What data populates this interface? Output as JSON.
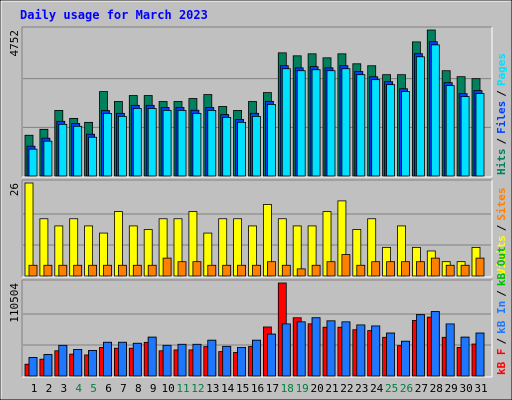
{
  "title": "Daily usage for March 2023",
  "weekend_indices": [
    3,
    4,
    10,
    11,
    17,
    18,
    24,
    25
  ],
  "weekend_label_color": "#008040",
  "label_separator": "/",
  "chart_data": [
    {
      "type": "bar",
      "ylim": [
        0,
        4752
      ],
      "yticks": [
        4752
      ],
      "grid": true,
      "series": [
        {
          "name": "Hits",
          "color": "#00805c",
          "values": [
            1326,
            1520,
            2134,
            1875,
            1746,
            2748,
            2425,
            2619,
            2619,
            2425,
            2425,
            2522,
            2651,
            2263,
            2134,
            2425,
            2716,
            4009,
            3912,
            3977,
            3847,
            3977,
            3653,
            3589,
            3298,
            3298,
            4365,
            4752,
            3427,
            3233,
            3168
          ]
        },
        {
          "name": "Files",
          "color": "#0040ff",
          "values": [
            970,
            1230,
            1780,
            1710,
            1360,
            2130,
            2040,
            2300,
            2300,
            2230,
            2230,
            2140,
            2230,
            2000,
            1840,
            2040,
            2430,
            3590,
            3520,
            3560,
            3520,
            3590,
            3400,
            3230,
            3070,
            2840,
            3980,
            4370,
            3040,
            2680,
            2780
          ]
        },
        {
          "name": "Pages",
          "color": "#00e0ff",
          "values": [
            873,
            1132,
            1681,
            1617,
            1261,
            2037,
            1940,
            2198,
            2198,
            2134,
            2134,
            2037,
            2134,
            1907,
            1746,
            1940,
            2328,
            3492,
            3427,
            3459,
            3427,
            3492,
            3298,
            3136,
            2974,
            2748,
            3880,
            4268,
            2942,
            2586,
            2683
          ]
        }
      ]
    },
    {
      "type": "bar",
      "ylim": [
        0,
        26
      ],
      "yticks": [
        26
      ],
      "grid": true,
      "series": [
        {
          "name": "Visits",
          "color": "#ffff00",
          "values": [
            26,
            16,
            14,
            16,
            14,
            12,
            18,
            14,
            13,
            16,
            16,
            18,
            12,
            16,
            16,
            14,
            20,
            16,
            14,
            14,
            18,
            21,
            13,
            16,
            8,
            14,
            8,
            7,
            4,
            4,
            8
          ]
        },
        {
          "name": "Sites",
          "color": "#ff8000",
          "values": [
            3,
            3,
            3,
            3,
            3,
            3,
            3,
            3,
            3,
            5,
            4,
            4,
            3,
            3,
            3,
            3,
            4,
            3,
            2,
            3,
            4,
            6,
            3,
            4,
            4,
            4,
            4,
            5,
            3,
            3,
            5
          ]
        }
      ]
    },
    {
      "type": "bar",
      "ylim": [
        0,
        110504
      ],
      "yticks": [
        110504
      ],
      "grid": true,
      "categories": [
        "1",
        "2",
        "3",
        "4",
        "5",
        "6",
        "7",
        "8",
        "9",
        "10",
        "11",
        "12",
        "13",
        "14",
        "15",
        "16",
        "17",
        "18",
        "19",
        "20",
        "21",
        "22",
        "23",
        "24",
        "25",
        "26",
        "27",
        "28",
        "29",
        "30",
        "31"
      ],
      "series": [
        {
          "name": "kB F",
          "color": "#ff0000",
          "values": [
            14000,
            20000,
            30000,
            26000,
            25000,
            34000,
            33000,
            33000,
            40000,
            30000,
            31000,
            31000,
            35000,
            29000,
            28000,
            35000,
            58272,
            110504,
            69198,
            62000,
            58000,
            58000,
            55000,
            54000,
            46000,
            36000,
            66000,
            70000,
            46000,
            34000,
            38000
          ]
        },
        {
          "name": "kB In",
          "color": "#1e78ff",
          "values": [
            21853,
            25494,
            36420,
            31564,
            30350,
            40062,
            40062,
            38848,
            46132,
            36420,
            37634,
            37634,
            42490,
            35206,
            33992,
            42490,
            49774,
            61914,
            64342,
            69198,
            65556,
            64342,
            60700,
            59486,
            50988,
            41276,
            72840,
            76482,
            61914,
            46132,
            50988
          ]
        },
        {
          "name": "kB Out",
          "color": "#00c000",
          "values": [
            21853,
            25494,
            36420,
            31564,
            30350,
            40062,
            40062,
            38848,
            46132,
            36420,
            37634,
            37634,
            42490,
            35206,
            33992,
            42490,
            49774,
            61914,
            64342,
            69198,
            65556,
            64342,
            60700,
            59486,
            50988,
            41276,
            72840,
            76482,
            61914,
            46132,
            50988
          ]
        }
      ]
    }
  ]
}
